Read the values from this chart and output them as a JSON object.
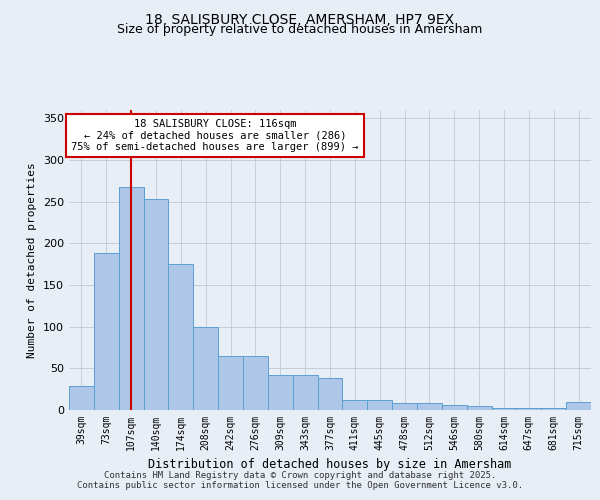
{
  "title_line1": "18, SALISBURY CLOSE, AMERSHAM, HP7 9EX",
  "title_line2": "Size of property relative to detached houses in Amersham",
  "xlabel": "Distribution of detached houses by size in Amersham",
  "ylabel": "Number of detached properties",
  "bar_labels": [
    "39sqm",
    "73sqm",
    "107sqm",
    "140sqm",
    "174sqm",
    "208sqm",
    "242sqm",
    "276sqm",
    "309sqm",
    "343sqm",
    "377sqm",
    "411sqm",
    "445sqm",
    "478sqm",
    "512sqm",
    "546sqm",
    "580sqm",
    "614sqm",
    "647sqm",
    "681sqm",
    "715sqm"
  ],
  "bar_values": [
    29,
    188,
    268,
    253,
    175,
    100,
    65,
    65,
    42,
    42,
    38,
    12,
    12,
    8,
    8,
    6,
    5,
    3,
    3,
    3,
    10
  ],
  "bar_color": "#aec6e8",
  "bar_edgecolor": "#5a9fd4",
  "vline_index": 2,
  "vline_color": "#cc0000",
  "ylim": [
    0,
    360
  ],
  "yticks": [
    0,
    50,
    100,
    150,
    200,
    250,
    300,
    350
  ],
  "annotation_text": "18 SALISBURY CLOSE: 116sqm\n← 24% of detached houses are smaller (286)\n75% of semi-detached houses are larger (899) →",
  "annotation_box_color": "#ffffff",
  "annotation_border_color": "#cc0000",
  "bg_color": "#e8eef5",
  "footnote1": "Contains HM Land Registry data © Crown copyright and database right 2025.",
  "footnote2": "Contains public sector information licensed under the Open Government Licence v3.0.",
  "title_fontsize": 10,
  "subtitle_fontsize": 9
}
